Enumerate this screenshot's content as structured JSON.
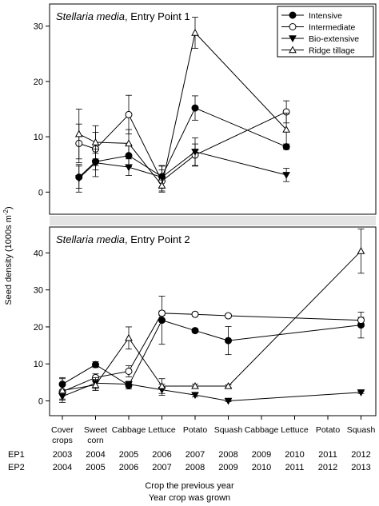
{
  "figure": {
    "ylabel_main": "Seed density (1000s m",
    "ylabel_sup": "-2",
    "ylabel_end": ")",
    "xlabel_line1": "Crop the previous year",
    "xlabel_line2": "Year crop was grown"
  },
  "legend": {
    "entries": [
      {
        "label": "Intensive",
        "marker": "filled-circle"
      },
      {
        "label": "Intermediate",
        "marker": "open-circle"
      },
      {
        "label": "Bio-extensive",
        "marker": "filled-triangle-down"
      },
      {
        "label": "Ridge tillage",
        "marker": "open-triangle-up"
      }
    ]
  },
  "x_axis": {
    "categories": [
      [
        "Cover",
        "crops"
      ],
      [
        "Sweet",
        "corn"
      ],
      [
        "Cabbage"
      ],
      [
        "Lettuce"
      ],
      [
        "Potato"
      ],
      [
        "Squash"
      ],
      [
        "Cabbage"
      ],
      [
        "Lettuce"
      ],
      [
        "Potato"
      ],
      [
        "Squash"
      ]
    ],
    "ep_rows": [
      {
        "label": "EP1",
        "years": [
          "2003",
          "2004",
          "2005",
          "2006",
          "2007",
          "2008",
          "2009",
          "2010",
          "2011",
          "2012"
        ]
      },
      {
        "label": "EP2",
        "years": [
          "2004",
          "2005",
          "2006",
          "2007",
          "2008",
          "2009",
          "2010",
          "2011",
          "2012",
          "2013"
        ]
      }
    ]
  },
  "chart_data": [
    {
      "type": "line",
      "panel": "top",
      "title": "Stellaria media",
      "title_suffix": ", Entry Point 1",
      "ylim": [
        -4,
        34
      ],
      "yticks": [
        0,
        10,
        20,
        30
      ],
      "legend_position": "top-right",
      "grid": false,
      "series": [
        {
          "name": "Intensive",
          "marker": "filled-circle",
          "points": [
            [
              0.5,
              2.7,
              2.0
            ],
            [
              1,
              5.5,
              1.5
            ],
            [
              2,
              6.6,
              2.0
            ],
            [
              3,
              2.8,
              2.0
            ],
            [
              4,
              15.2,
              2.2
            ],
            [
              6.75,
              8.2,
              0.5
            ]
          ]
        },
        {
          "name": "Intermediate",
          "marker": "open-circle",
          "points": [
            [
              0.5,
              8.8,
              3.5
            ],
            [
              1,
              7.8,
              3.0
            ],
            [
              2,
              14.0,
              3.5
            ],
            [
              3,
              2.0,
              2.0
            ],
            [
              4,
              6.7,
              2.0
            ],
            [
              6.75,
              14.5,
              2.0
            ]
          ]
        },
        {
          "name": "Bio-extensive",
          "marker": "filled-triangle-down",
          "points": [
            [
              0.5,
              2.5,
              2.5
            ],
            [
              1,
              5.3,
              2.5
            ],
            [
              2,
              4.5,
              1.5
            ],
            [
              3,
              2.7,
              2.0
            ],
            [
              4,
              7.3,
              2.5
            ],
            [
              6.75,
              3.1,
              1.2
            ]
          ]
        },
        {
          "name": "Ridge tillage",
          "marker": "open-triangle-up",
          "points": [
            [
              0.5,
              10.5,
              4.5
            ],
            [
              1,
              9.0,
              3.0
            ],
            [
              2,
              8.8,
              2.5
            ],
            [
              3,
              1.2,
              1.0
            ],
            [
              4,
              28.8,
              2.8
            ],
            [
              6.75,
              11.3,
              3.0
            ]
          ]
        }
      ]
    },
    {
      "type": "line",
      "panel": "bottom",
      "title": "Stellaria media",
      "title_suffix": ", Entry Point 2",
      "ylim": [
        -4,
        47
      ],
      "yticks": [
        0,
        10,
        20,
        30,
        40
      ],
      "grid": false,
      "series": [
        {
          "name": "Intensive",
          "marker": "filled-circle",
          "points": [
            [
              0,
              4.5,
              1.8
            ],
            [
              1,
              9.8,
              0.8
            ],
            [
              2,
              4.2,
              1.0
            ],
            [
              3,
              21.8,
              6.5
            ],
            [
              4,
              19.0,
              0.5
            ],
            [
              5,
              16.3,
              3.8
            ],
            [
              9,
              20.5,
              3.5
            ]
          ]
        },
        {
          "name": "Intermediate",
          "marker": "open-circle",
          "points": [
            [
              0,
              2.5,
              2.0
            ],
            [
              1,
              6.3,
              1.0
            ],
            [
              2,
              8.0,
              1.5
            ],
            [
              3,
              23.7,
              0.6
            ],
            [
              4,
              23.4,
              0.5
            ],
            [
              5,
              23.0,
              0.5
            ],
            [
              9,
              21.8,
              0.8
            ]
          ]
        },
        {
          "name": "Bio-extensive",
          "marker": "filled-triangle-down",
          "points": [
            [
              0,
              1.2,
              1.0
            ],
            [
              1,
              4.8,
              1.5
            ],
            [
              2,
              4.5,
              0.8
            ],
            [
              3,
              3.0,
              1.5
            ],
            [
              4,
              1.6,
              0.5
            ],
            [
              5,
              0.0,
              0.2
            ],
            [
              9,
              2.3,
              0.3
            ]
          ]
        },
        {
          "name": "Ridge tillage",
          "marker": "open-triangle-up",
          "points": [
            [
              0,
              2.8,
              3.2
            ],
            [
              1,
              4.3,
              1.5
            ],
            [
              2,
              17.0,
              3.0
            ],
            [
              3,
              4.0,
              2.0
            ],
            [
              4,
              4.0,
              0.5
            ],
            [
              5,
              4.0,
              0.3
            ],
            [
              9,
              40.5,
              6.0
            ]
          ]
        }
      ]
    }
  ]
}
